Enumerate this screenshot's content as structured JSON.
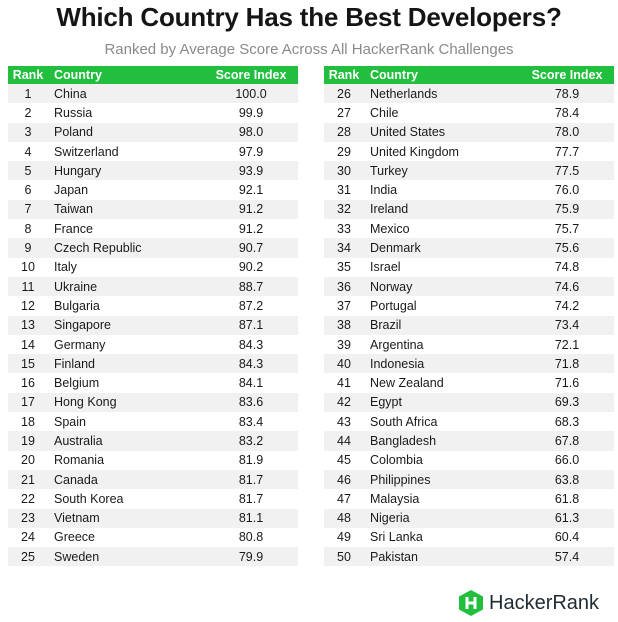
{
  "title": "Which Country Has the Best Developers?",
  "subtitle": "Ranked by Average Score Across All HackerRank Challenges",
  "columns": [
    "Rank",
    "Country",
    "Score Index"
  ],
  "accent_color": "#22bf3f",
  "left_rows": [
    [
      "1",
      "China",
      "100.0"
    ],
    [
      "2",
      "Russia",
      "99.9"
    ],
    [
      "3",
      "Poland",
      "98.0"
    ],
    [
      "4",
      "Switzerland",
      "97.9"
    ],
    [
      "5",
      "Hungary",
      "93.9"
    ],
    [
      "6",
      "Japan",
      "92.1"
    ],
    [
      "7",
      "Taiwan",
      "91.2"
    ],
    [
      "8",
      "France",
      "91.2"
    ],
    [
      "9",
      "Czech Republic",
      "90.7"
    ],
    [
      "10",
      "Italy",
      "90.2"
    ],
    [
      "11",
      "Ukraine",
      "88.7"
    ],
    [
      "12",
      "Bulgaria",
      "87.2"
    ],
    [
      "13",
      "Singapore",
      "87.1"
    ],
    [
      "14",
      "Germany",
      "84.3"
    ],
    [
      "15",
      "Finland",
      "84.3"
    ],
    [
      "16",
      "Belgium",
      "84.1"
    ],
    [
      "17",
      "Hong Kong",
      "83.6"
    ],
    [
      "18",
      "Spain",
      "83.4"
    ],
    [
      "19",
      "Australia",
      "83.2"
    ],
    [
      "20",
      "Romania",
      "81.9"
    ],
    [
      "21",
      "Canada",
      "81.7"
    ],
    [
      "22",
      "South Korea",
      "81.7"
    ],
    [
      "23",
      "Vietnam",
      "81.1"
    ],
    [
      "24",
      "Greece",
      "80.8"
    ],
    [
      "25",
      "Sweden",
      "79.9"
    ]
  ],
  "right_rows": [
    [
      "26",
      "Netherlands",
      "78.9"
    ],
    [
      "27",
      "Chile",
      "78.4"
    ],
    [
      "28",
      "United States",
      "78.0"
    ],
    [
      "29",
      "United Kingdom",
      "77.7"
    ],
    [
      "30",
      "Turkey",
      "77.5"
    ],
    [
      "31",
      "India",
      "76.0"
    ],
    [
      "32",
      "Ireland",
      "75.9"
    ],
    [
      "33",
      "Mexico",
      "75.7"
    ],
    [
      "34",
      "Denmark",
      "75.6"
    ],
    [
      "35",
      "Israel",
      "74.8"
    ],
    [
      "36",
      "Norway",
      "74.6"
    ],
    [
      "37",
      "Portugal",
      "74.2"
    ],
    [
      "38",
      "Brazil",
      "73.4"
    ],
    [
      "39",
      "Argentina",
      "72.1"
    ],
    [
      "40",
      "Indonesia",
      "71.8"
    ],
    [
      "41",
      "New Zealand",
      "71.6"
    ],
    [
      "42",
      "Egypt",
      "69.3"
    ],
    [
      "43",
      "South Africa",
      "68.3"
    ],
    [
      "44",
      "Bangladesh",
      "67.8"
    ],
    [
      "45",
      "Colombia",
      "66.0"
    ],
    [
      "46",
      "Philippines",
      "63.8"
    ],
    [
      "47",
      "Malaysia",
      "61.8"
    ],
    [
      "48",
      "Nigeria",
      "61.3"
    ],
    [
      "49",
      "Sri Lanka",
      "60.4"
    ],
    [
      "50",
      "Pakistan",
      "57.4"
    ]
  ],
  "logo": {
    "text": "HackerRank",
    "icon": "hackerrank-hexagon-icon",
    "color": "#22bf3f"
  }
}
